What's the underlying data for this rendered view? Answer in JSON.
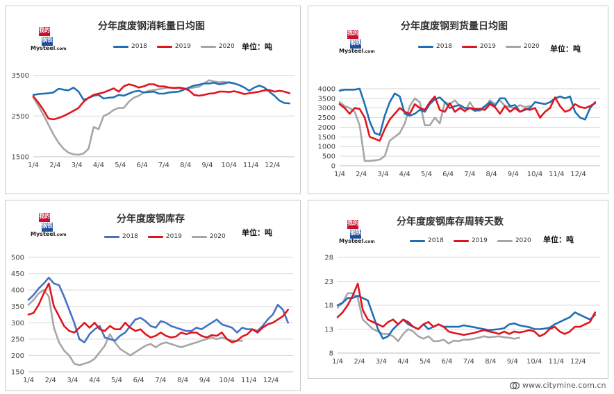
{
  "unit_label": "单位：吨",
  "logo": {
    "line1": "我的",
    "line2": "钢铁",
    "wordmark": "Mysteel",
    "wordmark_suffix": ".com"
  },
  "watermark": "www.citymine.com.cn",
  "colors": {
    "2018": "#1f6fb5",
    "2019": "#e0141e",
    "2020": "#a6a6a6",
    "blue_alt": "#4472c4"
  },
  "chart_data": [
    {
      "type": "line",
      "title": "分年度废钢消耗量日均图",
      "unit": "单位：吨",
      "x_ticks": [
        "1/4",
        "2/4",
        "3/4",
        "4/4",
        "5/4",
        "6/4",
        "7/4",
        "8/4",
        "9/4",
        "10/4",
        "11/4",
        "12/4"
      ],
      "ylim": [
        1500,
        3800
      ],
      "y_ticks": [
        1500,
        2500,
        3500
      ],
      "x_span_weeks": 52,
      "series": [
        {
          "name": "2018",
          "color": "#1f6fb5",
          "values": [
            3020,
            3040,
            3050,
            3060,
            3080,
            3170,
            3150,
            3130,
            3200,
            3100,
            2900,
            2940,
            3000,
            3020,
            2930,
            2950,
            2960,
            3020,
            3000,
            3050,
            3100,
            3120,
            3080,
            3090,
            3100,
            3050,
            3050,
            3080,
            3090,
            3100,
            3150,
            3200,
            3250,
            3270,
            3300,
            3300,
            3320,
            3280,
            3300,
            3330,
            3300,
            3260,
            3200,
            3120,
            3200,
            3250,
            3200,
            3100,
            3000,
            2880,
            2820,
            2810
          ]
        },
        {
          "name": "2019",
          "color": "#e0141e",
          "values": [
            2980,
            2830,
            2650,
            2440,
            2420,
            2450,
            2500,
            2560,
            2630,
            2700,
            2850,
            2950,
            3020,
            3050,
            3080,
            3130,
            3180,
            3100,
            3230,
            3280,
            3250,
            3200,
            3230,
            3280,
            3280,
            3230,
            3230,
            3200,
            3190,
            3200,
            3180,
            3130,
            3020,
            3000,
            3020,
            3050,
            3060,
            3100,
            3100,
            3090,
            3110,
            3080,
            3040,
            3060,
            3080,
            3100,
            3130,
            3140,
            3100,
            3120,
            3100,
            3060
          ]
        },
        {
          "name": "2020",
          "color": "#a6a6a6",
          "values": [
            2960,
            2750,
            2530,
            2290,
            2050,
            1850,
            1700,
            1600,
            1560,
            1550,
            1580,
            1700,
            2230,
            2180,
            2500,
            2560,
            2650,
            2700,
            2700,
            2850,
            2950,
            3000,
            3080,
            3120,
            3140,
            3160,
            3180,
            3200,
            3190,
            3180,
            3160,
            3180,
            3200,
            3220,
            3300,
            3380,
            3350,
            3330,
            3340,
            3320,
            3300
          ]
        }
      ]
    },
    {
      "type": "line",
      "title": "分年度废钢到货量日均图",
      "unit": "单位：吨",
      "x_ticks": [
        "1/4",
        "2/4",
        "3/4",
        "4/4",
        "5/4",
        "6/4",
        "7/4",
        "8/4",
        "9/4",
        "10/4",
        "11/4",
        "12/4"
      ],
      "ylim": [
        0,
        4500
      ],
      "y_ticks": [
        0,
        500,
        1000,
        1500,
        2000,
        2500,
        3000,
        3500,
        4000
      ],
      "x_span_weeks": 52,
      "series": [
        {
          "name": "2018",
          "color": "#1f6fb5",
          "values": [
            3900,
            3950,
            3950,
            3950,
            4000,
            3200,
            2300,
            1700,
            1600,
            2600,
            3300,
            3750,
            3600,
            2700,
            2600,
            2700,
            2900,
            2800,
            3200,
            3450,
            3550,
            3300,
            3000,
            3100,
            3150,
            3000,
            3000,
            2850,
            2900,
            3100,
            3300,
            3100,
            3500,
            3500,
            3100,
            3150,
            2800,
            2900,
            3000,
            3300,
            3250,
            3200,
            3300,
            3500,
            3600,
            3500,
            3600,
            2800,
            2500,
            2400,
            3000,
            3300
          ]
        },
        {
          "name": "2019",
          "color": "#e0141e",
          "values": [
            3200,
            3000,
            2700,
            3000,
            2950,
            2500,
            1500,
            1400,
            1300,
            1900,
            2400,
            2700,
            3000,
            2800,
            2700,
            3200,
            3000,
            2900,
            3300,
            3600,
            2900,
            2800,
            3250,
            2800,
            3000,
            2850,
            3000,
            2950,
            2950,
            2900,
            3200,
            3050,
            2700,
            3100,
            2800,
            3000,
            2800,
            2950,
            2900,
            3000,
            2500,
            2800,
            3000,
            3550,
            3100,
            2800,
            2900,
            3200,
            3050,
            3000,
            3100,
            3250
          ]
        },
        {
          "name": "2020",
          "color": "#a6a6a6",
          "values": [
            3300,
            3100,
            3000,
            2800,
            2100,
            250,
            250,
            280,
            320,
            500,
            1300,
            1500,
            1700,
            2200,
            3100,
            3500,
            3300,
            2100,
            2100,
            2500,
            2200,
            3300,
            3200,
            3400,
            3100,
            2800,
            3300,
            2900,
            2850,
            3000,
            3400,
            3200,
            3400,
            3100,
            3050,
            3000,
            3150,
            3050,
            3100
          ]
        }
      ]
    },
    {
      "type": "line",
      "title": "分年度废钢库存",
      "unit": "单位：吨",
      "x_ticks": [
        "1/4",
        "2/4",
        "3/4",
        "4/4",
        "5/4",
        "6/4",
        "7/4",
        "8/4",
        "9/4",
        "10/4",
        "11/4",
        "12/4"
      ],
      "ylim": [
        150,
        500
      ],
      "y_ticks": [
        150,
        200,
        250,
        300,
        350,
        400,
        450,
        500
      ],
      "x_span_weeks": 52,
      "series": [
        {
          "name": "2018",
          "color": "#4472c4",
          "values": [
            370,
            385,
            405,
            420,
            438,
            420,
            415,
            380,
            340,
            300,
            250,
            240,
            265,
            280,
            290,
            255,
            250,
            245,
            260,
            270,
            290,
            310,
            315,
            305,
            290,
            285,
            305,
            300,
            290,
            285,
            280,
            275,
            275,
            285,
            280,
            290,
            300,
            310,
            295,
            290,
            285,
            270,
            285,
            280,
            280,
            275,
            290,
            310,
            325,
            355,
            340,
            300
          ]
        },
        {
          "name": "2019",
          "color": "#e0141e",
          "values": [
            325,
            330,
            355,
            390,
            420,
            350,
            320,
            290,
            275,
            270,
            285,
            300,
            285,
            300,
            280,
            275,
            290,
            280,
            280,
            300,
            285,
            275,
            280,
            265,
            255,
            260,
            270,
            260,
            255,
            258,
            270,
            265,
            270,
            270,
            260,
            255,
            262,
            260,
            270,
            250,
            240,
            245,
            258,
            265,
            280,
            270,
            285,
            295,
            300,
            310,
            320,
            340
          ]
        },
        {
          "name": "2020",
          "color": "#a6a6a6",
          "values": [
            355,
            370,
            390,
            400,
            380,
            285,
            240,
            215,
            200,
            175,
            170,
            175,
            180,
            190,
            210,
            230,
            265,
            240,
            220,
            210,
            200,
            210,
            220,
            230,
            235,
            225,
            235,
            240,
            235,
            230,
            225,
            230,
            235,
            240,
            245,
            250,
            255,
            250,
            255,
            250,
            245,
            245,
            245
          ]
        }
      ]
    },
    {
      "type": "line",
      "title": "分年度废钢库存周转天数",
      "unit": "单位：吨",
      "x_ticks": [
        "1/4",
        "2/4",
        "3/4",
        "4/4",
        "5/4",
        "6/4",
        "7/4",
        "8/4",
        "9/4",
        "10/4",
        "11/4",
        "12/4"
      ],
      "ylim": [
        8,
        28
      ],
      "y_ticks": [
        8,
        13,
        18,
        23,
        28
      ],
      "x_span_weeks": 52,
      "series": [
        {
          "name": "2018",
          "color": "#1f6fb5",
          "values": [
            18,
            18.5,
            19.5,
            19.5,
            20,
            19.5,
            19,
            16,
            13,
            11,
            11.5,
            13,
            14,
            15,
            14,
            13.5,
            13,
            14,
            13,
            13.5,
            14,
            13.5,
            13.5,
            13.5,
            13.5,
            13.8,
            13.6,
            13.4,
            13.2,
            13,
            12.8,
            12.9,
            13,
            13.2,
            14,
            14.2,
            13.8,
            13.6,
            13.4,
            13,
            13,
            13.1,
            13.3,
            14,
            14.5,
            15,
            15.5,
            16.5,
            16,
            15.5,
            15,
            16
          ]
        },
        {
          "name": "2019",
          "color": "#e0141e",
          "values": [
            15.5,
            16.5,
            18,
            20,
            22.5,
            17,
            15,
            14.5,
            14,
            13.5,
            14.5,
            15,
            14,
            15,
            14.5,
            13.5,
            13,
            14,
            14.5,
            13.5,
            14,
            13.5,
            12.5,
            12.2,
            12,
            11.8,
            12,
            12.2,
            12.5,
            12.8,
            12.5,
            12.3,
            12,
            12.5,
            12,
            12.5,
            12.3,
            12.5,
            12.8,
            12.5,
            11.5,
            12,
            13,
            13.5,
            12.5,
            12,
            12.5,
            13.5,
            13.5,
            14,
            14.5,
            16.5
          ]
        },
        {
          "name": "2020",
          "color": "#a6a6a6",
          "values": [
            17.5,
            18.5,
            20.5,
            20.5,
            19.5,
            15,
            14,
            13,
            12.5,
            12,
            12,
            11.5,
            10.5,
            12,
            13,
            12.5,
            11.5,
            11,
            11.5,
            10.5,
            10.5,
            10.8,
            10,
            10.6,
            10.5,
            10.8,
            10.8,
            11,
            11.2,
            11.5,
            11.3,
            11.4,
            11.5,
            11.3,
            11.2,
            11,
            11.2
          ]
        }
      ]
    }
  ]
}
